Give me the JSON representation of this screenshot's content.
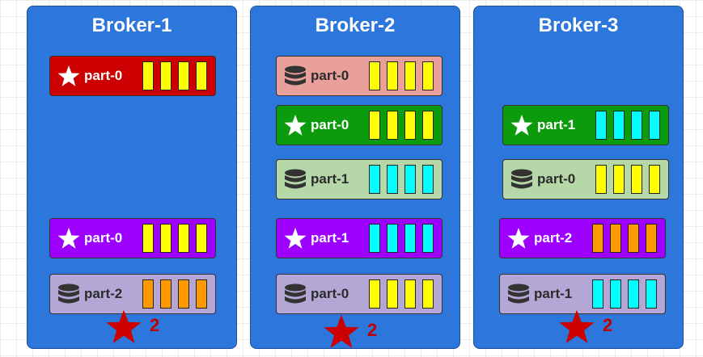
{
  "colors": {
    "broker_bg": "#2d76dc",
    "leader_red": "#cc0000",
    "leader_green": "#0c9b0c",
    "leader_purple": "#9d00ff",
    "follower_salmon": "#e9a09a",
    "follower_green": "#b6d7a8",
    "follower_lavender": "#b4a7d6",
    "cell_yellow": "#ffff00",
    "cell_cyan": "#00ffff",
    "cell_orange": "#ff9900",
    "badge_star": "#cc0000"
  },
  "icons": {
    "leader": "star-icon",
    "follower": "database-icon",
    "badge": "star-icon"
  },
  "brokers": [
    {
      "title": "Broker-1",
      "partitions": [
        {
          "label": "part-0",
          "role": "leader",
          "color": "#cc0000",
          "cell_color": "#ffff00",
          "cells": 4
        },
        {
          "label": "part-0",
          "role": "leader",
          "color": "#9d00ff",
          "cell_color": "#ffff00",
          "cells": 4
        },
        {
          "label": "part-2",
          "role": "follower",
          "color": "#b4a7d6",
          "cell_color": "#ff9900",
          "cells": 4
        }
      ],
      "badge": "2"
    },
    {
      "title": "Broker-2",
      "partitions": [
        {
          "label": "part-0",
          "role": "follower",
          "color": "#e9a09a",
          "cell_color": "#ffff00",
          "cells": 4
        },
        {
          "label": "part-0",
          "role": "leader",
          "color": "#0c9b0c",
          "cell_color": "#ffff00",
          "cells": 4
        },
        {
          "label": "part-1",
          "role": "follower",
          "color": "#b6d7a8",
          "cell_color": "#00ffff",
          "cells": 4
        },
        {
          "label": "part-1",
          "role": "leader",
          "color": "#9d00ff",
          "cell_color": "#00ffff",
          "cells": 4
        },
        {
          "label": "part-0",
          "role": "follower",
          "color": "#b4a7d6",
          "cell_color": "#ffff00",
          "cells": 4
        }
      ],
      "badge": "2"
    },
    {
      "title": "Broker-3",
      "partitions": [
        {
          "label": "part-1",
          "role": "leader",
          "color": "#0c9b0c",
          "cell_color": "#00ffff",
          "cells": 4
        },
        {
          "label": "part-0",
          "role": "follower",
          "color": "#b6d7a8",
          "cell_color": "#ffff00",
          "cells": 4
        },
        {
          "label": "part-2",
          "role": "leader",
          "color": "#9d00ff",
          "cell_color": "#ff9900",
          "cells": 4
        },
        {
          "label": "part-1",
          "role": "follower",
          "color": "#b4a7d6",
          "cell_color": "#00ffff",
          "cells": 4
        }
      ],
      "badge": "2"
    }
  ]
}
